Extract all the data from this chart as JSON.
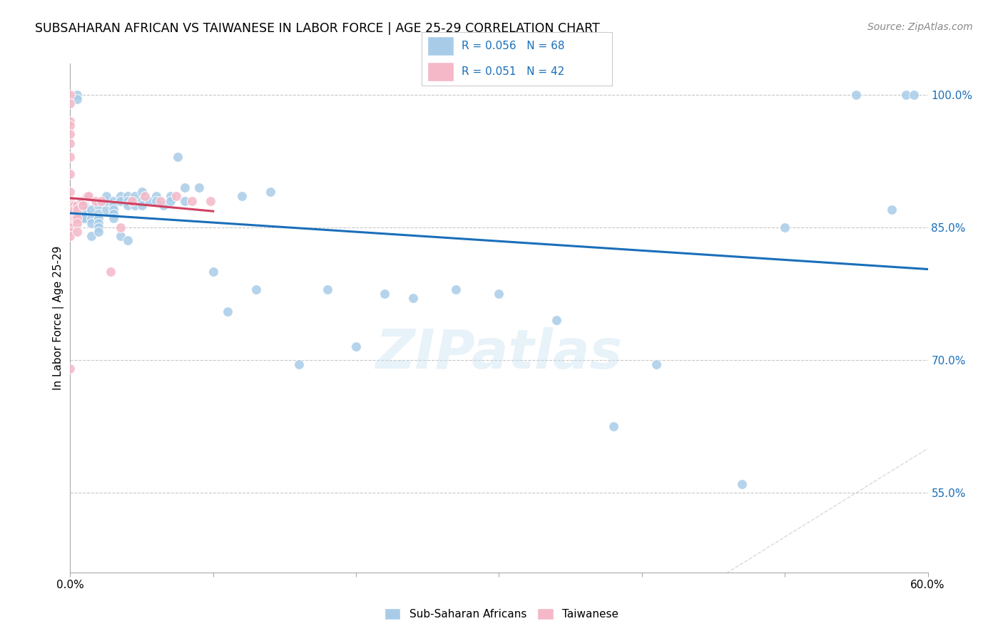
{
  "title": "SUBSAHARAN AFRICAN VS TAIWANESE IN LABOR FORCE | AGE 25-29 CORRELATION CHART",
  "source": "Source: ZipAtlas.com",
  "ylabel": "In Labor Force | Age 25-29",
  "xlim": [
    0.0,
    0.6
  ],
  "ylim": [
    0.46,
    1.035
  ],
  "blue_r": 0.056,
  "blue_n": 68,
  "pink_r": 0.051,
  "pink_n": 42,
  "blue_color": "#a8cce8",
  "pink_color": "#f4b8c8",
  "blue_line_color": "#1a6fba",
  "pink_line_color": "#d04060",
  "diagonal_color": "#d0d0d0",
  "watermark": "ZIPatlas",
  "y_tick_vals": [
    0.55,
    0.7,
    0.85,
    1.0
  ],
  "y_tick_labels": [
    "55.0%",
    "70.0%",
    "85.0%",
    "100.0%"
  ],
  "x_tick_vals": [
    0.0,
    0.1,
    0.2,
    0.3,
    0.4,
    0.5,
    0.6
  ],
  "x_tick_labels": [
    "0.0%",
    "",
    "",
    "",
    "",
    "",
    "60.0%"
  ],
  "blue_x": [
    0.005,
    0.005,
    0.01,
    0.01,
    0.01,
    0.01,
    0.01,
    0.015,
    0.015,
    0.015,
    0.015,
    0.02,
    0.02,
    0.02,
    0.02,
    0.02,
    0.02,
    0.025,
    0.025,
    0.025,
    0.03,
    0.03,
    0.03,
    0.03,
    0.03,
    0.035,
    0.035,
    0.035,
    0.04,
    0.04,
    0.04,
    0.04,
    0.045,
    0.045,
    0.05,
    0.05,
    0.05,
    0.055,
    0.06,
    0.06,
    0.065,
    0.07,
    0.07,
    0.075,
    0.08,
    0.08,
    0.09,
    0.1,
    0.11,
    0.12,
    0.13,
    0.14,
    0.16,
    0.18,
    0.2,
    0.22,
    0.24,
    0.27,
    0.3,
    0.34,
    0.38,
    0.41,
    0.47,
    0.5,
    0.55,
    0.575,
    0.585,
    0.59
  ],
  "blue_y": [
    1.0,
    0.995,
    0.88,
    0.875,
    0.87,
    0.86,
    0.86,
    0.87,
    0.86,
    0.855,
    0.84,
    0.875,
    0.865,
    0.86,
    0.855,
    0.85,
    0.845,
    0.87,
    0.88,
    0.885,
    0.88,
    0.875,
    0.87,
    0.865,
    0.86,
    0.885,
    0.88,
    0.84,
    0.885,
    0.88,
    0.875,
    0.835,
    0.885,
    0.875,
    0.89,
    0.88,
    0.875,
    0.88,
    0.885,
    0.88,
    0.875,
    0.885,
    0.88,
    0.93,
    0.895,
    0.88,
    0.895,
    0.8,
    0.755,
    0.885,
    0.78,
    0.89,
    0.695,
    0.78,
    0.715,
    0.775,
    0.77,
    0.78,
    0.775,
    0.745,
    0.625,
    0.695,
    0.56,
    0.85,
    1.0,
    0.87,
    1.0,
    1.0
  ],
  "pink_x": [
    0.0,
    0.0,
    0.0,
    0.0,
    0.0,
    0.0,
    0.0,
    0.0,
    0.0,
    0.0,
    0.0,
    0.0,
    0.0,
    0.0,
    0.0,
    0.0,
    0.0,
    0.0,
    0.003,
    0.003,
    0.003,
    0.004,
    0.005,
    0.005,
    0.005,
    0.005,
    0.005,
    0.008,
    0.009,
    0.009,
    0.012,
    0.013,
    0.018,
    0.022,
    0.028,
    0.035,
    0.043,
    0.052,
    0.063,
    0.074,
    0.085,
    0.098
  ],
  "pink_y": [
    1.0,
    0.99,
    0.97,
    0.965,
    0.955,
    0.945,
    0.93,
    0.91,
    0.89,
    0.88,
    0.875,
    0.87,
    0.865,
    0.855,
    0.85,
    0.845,
    0.84,
    0.69,
    0.875,
    0.87,
    0.86,
    0.86,
    0.875,
    0.87,
    0.86,
    0.855,
    0.845,
    0.88,
    0.88,
    0.875,
    0.885,
    0.885,
    0.88,
    0.88,
    0.8,
    0.85,
    0.88,
    0.885,
    0.88,
    0.885,
    0.88,
    0.88
  ]
}
